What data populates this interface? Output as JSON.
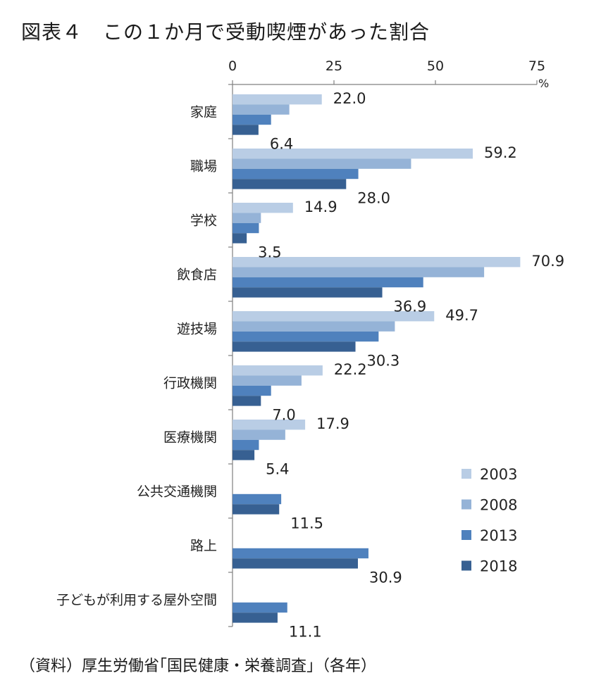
{
  "title": "図表４　この１か月で受動喫煙があった割合",
  "source": "（資料）厚生労働省｢国民健康・栄養調査｣（各年）",
  "colors": {
    "2003": "#b9cde5",
    "2008": "#95b3d7",
    "2013": "#4f81bd",
    "2018": "#376092"
  },
  "chart_data": {
    "type": "bar",
    "orientation": "horizontal",
    "unit": "%",
    "xlim": [
      0,
      75
    ],
    "ticks": [
      0,
      25,
      50,
      75
    ],
    "grid": false,
    "legend_position": "bottom-right",
    "categories": [
      "家庭",
      "職場",
      "学校",
      "飲食店",
      "遊技場",
      "行政機関",
      "医療機関",
      "公共交通機関",
      "路上",
      "子どもが利用する屋外空間"
    ],
    "series": [
      {
        "name": "2003",
        "values": [
          22.0,
          59.2,
          14.9,
          70.9,
          49.7,
          22.2,
          17.9,
          null,
          null,
          null
        ]
      },
      {
        "name": "2008",
        "values": [
          14.0,
          44.0,
          7.0,
          62.0,
          40.0,
          17.0,
          13.0,
          null,
          null,
          null
        ]
      },
      {
        "name": "2013",
        "values": [
          9.5,
          31.0,
          6.5,
          47.0,
          36.0,
          9.5,
          6.5,
          12.0,
          33.5,
          13.5
        ]
      },
      {
        "name": "2018",
        "values": [
          6.4,
          28.0,
          3.5,
          36.9,
          30.3,
          7.0,
          5.4,
          11.5,
          30.9,
          11.1
        ]
      }
    ],
    "data_labels": [
      {
        "category": "家庭",
        "series": "2003",
        "text": "22.0"
      },
      {
        "category": "家庭",
        "series": "2018",
        "text": "6.4"
      },
      {
        "category": "職場",
        "series": "2003",
        "text": "59.2"
      },
      {
        "category": "職場",
        "series": "2018",
        "text": "28.0"
      },
      {
        "category": "学校",
        "series": "2003",
        "text": "14.9"
      },
      {
        "category": "学校",
        "series": "2018",
        "text": "3.5"
      },
      {
        "category": "飲食店",
        "series": "2003",
        "text": "70.9"
      },
      {
        "category": "飲食店",
        "series": "2018",
        "text": "36.9"
      },
      {
        "category": "遊技場",
        "series": "2003",
        "text": "49.7"
      },
      {
        "category": "遊技場",
        "series": "2018",
        "text": "30.3"
      },
      {
        "category": "行政機関",
        "series": "2003",
        "text": "22.2"
      },
      {
        "category": "行政機関",
        "series": "2018",
        "text": "7.0"
      },
      {
        "category": "医療機関",
        "series": "2003",
        "text": "17.9"
      },
      {
        "category": "医療機関",
        "series": "2018",
        "text": "5.4"
      },
      {
        "category": "公共交通機関",
        "series": "2018",
        "text": "11.5"
      },
      {
        "category": "路上",
        "series": "2018",
        "text": "30.9"
      },
      {
        "category": "子どもが利用する屋外空間",
        "series": "2018",
        "text": "11.1"
      }
    ]
  }
}
